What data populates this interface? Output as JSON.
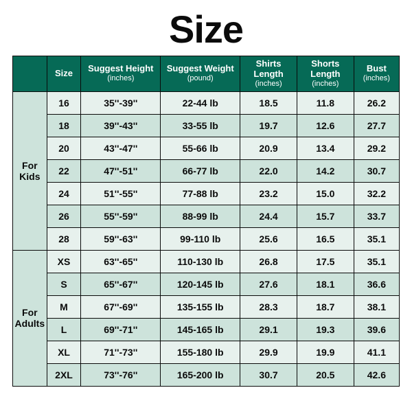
{
  "title": "Size",
  "title_fontsize": 56,
  "title_color": "#0b0b0b",
  "colors": {
    "header_bg": "#066a56",
    "header_text": "#ffffff",
    "group_bg": "#cde3db",
    "row_even_bg": "#e7f1ed",
    "row_odd_bg": "#cde3db",
    "border": "#0a0a0a",
    "cell_text": "#0a0a0a"
  },
  "fontsizes": {
    "header_main": 13,
    "header_sub": 11,
    "cell": 14,
    "group": 14
  },
  "columns": [
    {
      "main": "",
      "sub": ""
    },
    {
      "main": "Size",
      "sub": ""
    },
    {
      "main": "Suggest Height",
      "sub": "(inches)"
    },
    {
      "main": "Suggest Weight",
      "sub": "(pound)"
    },
    {
      "main": "Shirts Length",
      "sub": "(inches)"
    },
    {
      "main": "Shorts Length",
      "sub": "(inches)"
    },
    {
      "main": "Bust",
      "sub": "(inches)"
    }
  ],
  "groups": [
    {
      "label": "For Kids",
      "rows": [
        {
          "size": "16",
          "height": "35''-39''",
          "weight": "22-44 lb",
          "shirts": "18.5",
          "shorts": "11.8",
          "bust": "26.2"
        },
        {
          "size": "18",
          "height": "39''-43''",
          "weight": "33-55 lb",
          "shirts": "19.7",
          "shorts": "12.6",
          "bust": "27.7"
        },
        {
          "size": "20",
          "height": "43''-47''",
          "weight": "55-66 lb",
          "shirts": "20.9",
          "shorts": "13.4",
          "bust": "29.2"
        },
        {
          "size": "22",
          "height": "47''-51''",
          "weight": "66-77 lb",
          "shirts": "22.0",
          "shorts": "14.2",
          "bust": "30.7"
        },
        {
          "size": "24",
          "height": "51''-55''",
          "weight": "77-88 lb",
          "shirts": "23.2",
          "shorts": "15.0",
          "bust": "32.2"
        },
        {
          "size": "26",
          "height": "55''-59''",
          "weight": "88-99 lb",
          "shirts": "24.4",
          "shorts": "15.7",
          "bust": "33.7"
        },
        {
          "size": "28",
          "height": "59''-63''",
          "weight": "99-110 lb",
          "shirts": "25.6",
          "shorts": "16.5",
          "bust": "35.1"
        }
      ]
    },
    {
      "label": "For Adults",
      "rows": [
        {
          "size": "XS",
          "height": "63''-65''",
          "weight": "110-130 lb",
          "shirts": "26.8",
          "shorts": "17.5",
          "bust": "35.1"
        },
        {
          "size": "S",
          "height": "65''-67''",
          "weight": "120-145 lb",
          "shirts": "27.6",
          "shorts": "18.1",
          "bust": "36.6"
        },
        {
          "size": "M",
          "height": "67''-69''",
          "weight": "135-155 lb",
          "shirts": "28.3",
          "shorts": "18.7",
          "bust": "38.1"
        },
        {
          "size": "L",
          "height": "69''-71''",
          "weight": "145-165 lb",
          "shirts": "29.1",
          "shorts": "19.3",
          "bust": "39.6"
        },
        {
          "size": "XL",
          "height": "71''-73''",
          "weight": "155-180 lb",
          "shirts": "29.9",
          "shorts": "19.9",
          "bust": "41.1"
        },
        {
          "size": "2XL",
          "height": "73''-76''",
          "weight": "165-200 lb",
          "shirts": "30.7",
          "shorts": "20.5",
          "bust": "42.6"
        }
      ]
    }
  ]
}
